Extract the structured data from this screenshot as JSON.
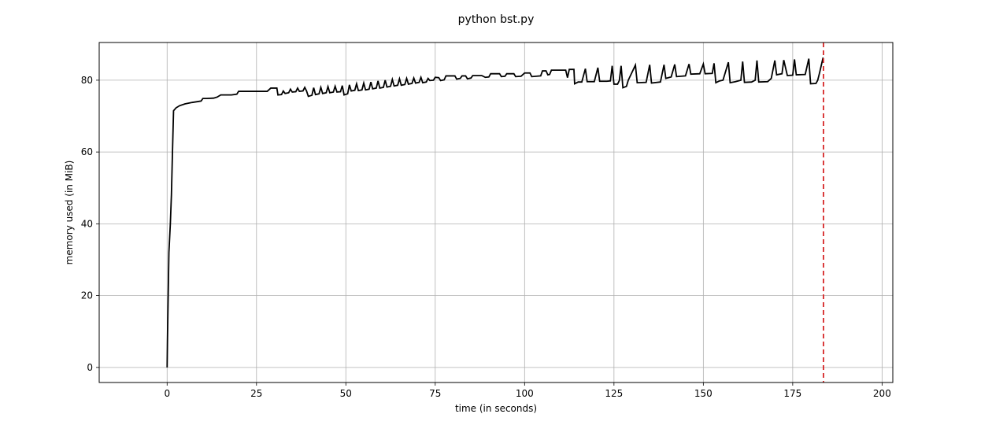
{
  "chart_data": {
    "type": "line",
    "title": "python bst.py",
    "xlabel": "time (in seconds)",
    "ylabel": "memory used (in MiB)",
    "xlim": [
      -19,
      203
    ],
    "ylim": [
      -4.2,
      90.5
    ],
    "xticks": [
      0,
      25,
      50,
      75,
      100,
      125,
      150,
      175,
      200
    ],
    "yticks": [
      0,
      20,
      40,
      60,
      80
    ],
    "grid": true,
    "vline": {
      "x": 183.6,
      "color": "#d62728",
      "style": "dashed"
    },
    "line_color": "#000000",
    "series": [
      {
        "points": [
          [
            0.0,
            0.0
          ],
          [
            0.1,
            8.0
          ],
          [
            0.3,
            20.0
          ],
          [
            0.5,
            32.0
          ],
          [
            0.9,
            40.0
          ],
          [
            1.2,
            48.0
          ],
          [
            1.5,
            60.0
          ],
          [
            1.8,
            71.5
          ],
          [
            2.5,
            72.3
          ],
          [
            3.5,
            72.9
          ],
          [
            5.0,
            73.4
          ],
          [
            7.0,
            73.8
          ],
          [
            9.5,
            74.2
          ],
          [
            10.0,
            74.9
          ],
          [
            11.0,
            74.9
          ],
          [
            13.0,
            75.0
          ],
          [
            14.0,
            75.3
          ],
          [
            15.0,
            75.9
          ],
          [
            18.0,
            75.9
          ],
          [
            19.5,
            76.1
          ],
          [
            20.0,
            76.9
          ],
          [
            28.0,
            76.9
          ],
          [
            29.0,
            77.8
          ],
          [
            30.7,
            77.8
          ],
          [
            31.0,
            75.9
          ],
          [
            32.0,
            76.0
          ],
          [
            32.5,
            77.0
          ],
          [
            33.0,
            76.3
          ],
          [
            34.0,
            76.5
          ],
          [
            34.5,
            77.5
          ],
          [
            35.0,
            76.7
          ],
          [
            36.0,
            76.8
          ],
          [
            36.5,
            77.8
          ],
          [
            37.0,
            76.9
          ],
          [
            38.0,
            77.0
          ],
          [
            38.5,
            78.0
          ],
          [
            39.0,
            77.0
          ],
          [
            39.5,
            75.5
          ],
          [
            40.5,
            75.8
          ],
          [
            41.0,
            77.9
          ],
          [
            41.5,
            76.0
          ],
          [
            42.5,
            76.2
          ],
          [
            43.0,
            78.0
          ],
          [
            43.5,
            76.3
          ],
          [
            44.5,
            76.5
          ],
          [
            45.0,
            78.2
          ],
          [
            45.5,
            76.5
          ],
          [
            46.5,
            76.7
          ],
          [
            47.0,
            78.3
          ],
          [
            47.5,
            76.7
          ],
          [
            48.5,
            76.8
          ],
          [
            49.0,
            78.5
          ],
          [
            49.5,
            75.9
          ],
          [
            50.5,
            76.2
          ],
          [
            51.0,
            78.7
          ],
          [
            51.5,
            77.0
          ],
          [
            52.5,
            77.2
          ],
          [
            53.0,
            79.0
          ],
          [
            53.5,
            77.1
          ],
          [
            54.5,
            77.3
          ],
          [
            55.0,
            79.2
          ],
          [
            55.5,
            77.3
          ],
          [
            56.5,
            77.5
          ],
          [
            57.0,
            79.5
          ],
          [
            57.5,
            77.6
          ],
          [
            58.5,
            77.8
          ],
          [
            59.0,
            79.8
          ],
          [
            59.5,
            77.8
          ],
          [
            60.5,
            78.0
          ],
          [
            61.0,
            80.0
          ],
          [
            61.5,
            78.1
          ],
          [
            62.5,
            78.3
          ],
          [
            63.0,
            80.2
          ],
          [
            63.5,
            78.4
          ],
          [
            64.5,
            78.6
          ],
          [
            65.0,
            80.4
          ],
          [
            65.5,
            78.6
          ],
          [
            66.5,
            78.8
          ],
          [
            67.0,
            80.5
          ],
          [
            67.5,
            78.9
          ],
          [
            68.5,
            79.1
          ],
          [
            69.0,
            80.6
          ],
          [
            69.5,
            79.2
          ],
          [
            70.5,
            79.4
          ],
          [
            71.0,
            80.8
          ],
          [
            71.5,
            79.3
          ],
          [
            72.5,
            79.5
          ],
          [
            73.0,
            80.5
          ],
          [
            73.5,
            79.9
          ],
          [
            74.5,
            80.0
          ],
          [
            75.0,
            80.8
          ],
          [
            76.0,
            80.7
          ],
          [
            76.5,
            79.9
          ],
          [
            77.5,
            80.1
          ],
          [
            78.0,
            81.2
          ],
          [
            80.5,
            81.2
          ],
          [
            81.0,
            80.3
          ],
          [
            82.0,
            80.5
          ],
          [
            82.5,
            81.2
          ],
          [
            83.5,
            81.2
          ],
          [
            84.0,
            80.4
          ],
          [
            85.0,
            80.6
          ],
          [
            85.5,
            81.3
          ],
          [
            88.0,
            81.3
          ],
          [
            89.0,
            80.8
          ],
          [
            90.0,
            80.9
          ],
          [
            90.5,
            81.8
          ],
          [
            93.0,
            81.8
          ],
          [
            93.5,
            81.0
          ],
          [
            94.5,
            81.1
          ],
          [
            95.0,
            81.8
          ],
          [
            97.0,
            81.8
          ],
          [
            97.5,
            81.0
          ],
          [
            99.0,
            81.1
          ],
          [
            100.0,
            82.0
          ],
          [
            101.5,
            82.0
          ],
          [
            102.0,
            81.0
          ],
          [
            104.5,
            81.2
          ],
          [
            105.0,
            82.6
          ],
          [
            106.0,
            82.6
          ],
          [
            106.5,
            81.5
          ],
          [
            107.0,
            81.6
          ],
          [
            107.5,
            82.8
          ],
          [
            111.5,
            82.8
          ],
          [
            112.0,
            80.7
          ],
          [
            112.5,
            83.0
          ],
          [
            113.8,
            83.0
          ],
          [
            114.0,
            79.0
          ],
          [
            115.0,
            79.5
          ],
          [
            116.0,
            79.5
          ],
          [
            117.0,
            83.2
          ],
          [
            117.5,
            79.6
          ],
          [
            119.5,
            79.6
          ],
          [
            120.5,
            83.5
          ],
          [
            121.0,
            79.7
          ],
          [
            123.0,
            79.7
          ],
          [
            124.0,
            79.8
          ],
          [
            124.5,
            84.0
          ],
          [
            125.0,
            78.9
          ],
          [
            126.0,
            78.9
          ],
          [
            126.5,
            79.9
          ],
          [
            127.0,
            84.0
          ],
          [
            127.5,
            77.9
          ],
          [
            128.5,
            78.3
          ],
          [
            129.0,
            80.0
          ],
          [
            131.0,
            84.2
          ],
          [
            131.5,
            79.3
          ],
          [
            134.0,
            79.4
          ],
          [
            135.0,
            84.3
          ],
          [
            135.5,
            79.2
          ],
          [
            138.0,
            79.5
          ],
          [
            139.0,
            84.3
          ],
          [
            139.5,
            80.5
          ],
          [
            141.0,
            80.9
          ],
          [
            142.0,
            84.4
          ],
          [
            142.5,
            81.0
          ],
          [
            145.0,
            81.2
          ],
          [
            146.0,
            84.5
          ],
          [
            146.5,
            81.7
          ],
          [
            149.0,
            81.8
          ],
          [
            150.0,
            84.5
          ],
          [
            150.5,
            81.8
          ],
          [
            152.5,
            81.9
          ],
          [
            153.0,
            84.7
          ],
          [
            153.5,
            79.3
          ],
          [
            154.5,
            79.8
          ],
          [
            155.5,
            80.0
          ],
          [
            157.0,
            85.0
          ],
          [
            157.5,
            79.3
          ],
          [
            159.0,
            79.6
          ],
          [
            160.5,
            80.0
          ],
          [
            161.0,
            85.2
          ],
          [
            161.5,
            79.4
          ],
          [
            163.5,
            79.5
          ],
          [
            164.5,
            80.0
          ],
          [
            165.0,
            85.5
          ],
          [
            165.5,
            79.5
          ],
          [
            168.0,
            79.6
          ],
          [
            169.0,
            80.5
          ],
          [
            170.0,
            85.5
          ],
          [
            170.5,
            81.5
          ],
          [
            172.0,
            81.8
          ],
          [
            172.5,
            85.6
          ],
          [
            173.5,
            81.3
          ],
          [
            175.0,
            81.4
          ],
          [
            175.5,
            85.8
          ],
          [
            176.0,
            81.5
          ],
          [
            178.5,
            81.6
          ],
          [
            179.5,
            86.0
          ],
          [
            180.0,
            79.0
          ],
          [
            181.5,
            79.1
          ],
          [
            182.0,
            80.0
          ],
          [
            182.5,
            82.0
          ],
          [
            183.5,
            86.3
          ]
        ]
      }
    ]
  }
}
